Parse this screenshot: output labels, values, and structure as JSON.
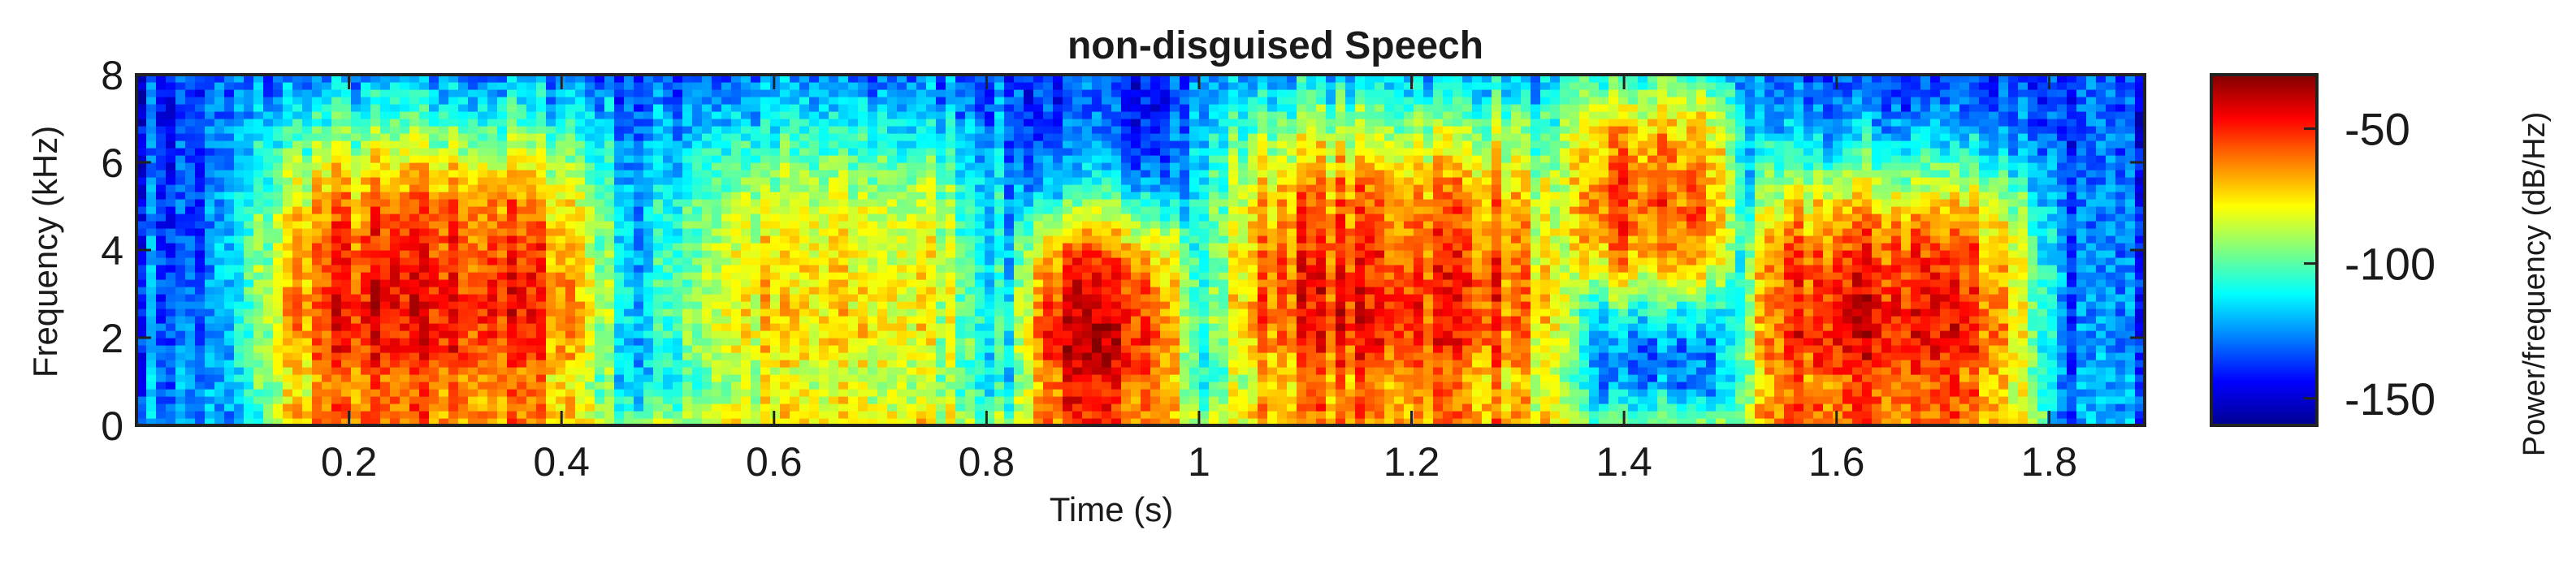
{
  "chart_data": {
    "type": "heatmap",
    "title": "non-disguised Speech",
    "xlabel": "Time (s)",
    "ylabel": "Frequency (kHz)",
    "xlim": [
      0,
      1.89
    ],
    "ylim": [
      0,
      8
    ],
    "x_ticks": [
      "0.2",
      "0.4",
      "0.6",
      "0.8",
      "1",
      "1.2",
      "1.4",
      "1.6",
      "1.8"
    ],
    "x_tick_values": [
      0.2,
      0.4,
      0.6,
      0.8,
      1.0,
      1.2,
      1.4,
      1.6,
      1.8
    ],
    "y_ticks": [
      "0",
      "2",
      "4",
      "6",
      "8"
    ],
    "y_tick_values": [
      0,
      2,
      4,
      6,
      8
    ],
    "colorbar": {
      "label": "Power/frequency (dB/Hz)",
      "range": [
        -160,
        -30
      ],
      "ticks": [
        "-50",
        "-100",
        "-150"
      ],
      "tick_values": [
        -50,
        -100,
        -150
      ],
      "colormap": "jet"
    },
    "grid": false,
    "energy_regions": [
      {
        "t": [
          0.12,
          0.44
        ],
        "f": [
          0,
          7
        ],
        "level": "high"
      },
      {
        "t": [
          0.5,
          0.8
        ],
        "f": [
          0,
          7
        ],
        "level": "medium"
      },
      {
        "t": [
          0.84,
          0.98
        ],
        "f": [
          0,
          5
        ],
        "level": "high"
      },
      {
        "t": [
          1.02,
          1.34
        ],
        "f": [
          0,
          7.5
        ],
        "level": "high"
      },
      {
        "t": [
          1.35,
          1.5
        ],
        "f": [
          3,
          8
        ],
        "level": "high"
      },
      {
        "t": [
          1.52,
          1.78
        ],
        "f": [
          0,
          6
        ],
        "level": "high"
      }
    ]
  }
}
